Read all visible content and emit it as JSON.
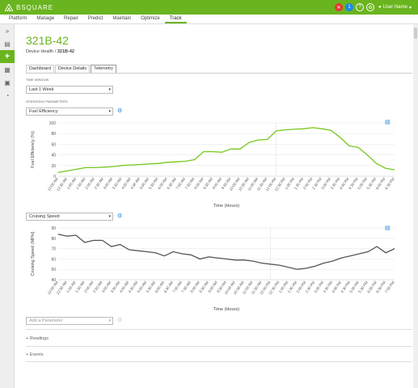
{
  "app": {
    "brand": "BSQUARE",
    "user": "User Name",
    "alert_count": "1"
  },
  "nav": [
    {
      "label": "Platform"
    },
    {
      "label": "Manage"
    },
    {
      "label": "Repair"
    },
    {
      "label": "Predict"
    },
    {
      "label": "Maintain"
    },
    {
      "label": "Optimize"
    },
    {
      "label": "Track",
      "active": true
    }
  ],
  "device": {
    "id": "321B-42",
    "crumb_parent": "Device Health",
    "crumb_sep": "/",
    "crumb_current": "321B-42"
  },
  "tabs": [
    {
      "label": "Dashboard"
    },
    {
      "label": "Device Details"
    },
    {
      "label": "Telemetry",
      "active": true
    }
  ],
  "filters": {
    "time_window_label": "TIME WINDOW",
    "time_window_value": "Last 1 Week",
    "operating_label": "OPERATING PARAMETERS",
    "param1_value": "Fuel Efficiency",
    "param2_value": "Cruising Speed",
    "add_param_placeholder": "Add a Parameter"
  },
  "sections": {
    "readings": "Readings",
    "events": "Events",
    "expand_glyph": "+"
  },
  "chart_data": [
    {
      "type": "line",
      "title": "",
      "xlabel": "Time (Hours)",
      "ylabel": "Fuel Efficiency (%)",
      "ylim": [
        0,
        100
      ],
      "yticks": [
        0,
        20,
        40,
        60,
        80,
        100
      ],
      "color": "#76c81f",
      "x": [
        "12:00 AM",
        "12:30 AM",
        "1:00 AM",
        "1:30 AM",
        "2:00 AM",
        "2:30 AM",
        "3:00 AM",
        "3:30 AM",
        "4:00 AM",
        "4:30 AM",
        "5:00 AM",
        "5:30 AM",
        "6:00 AM",
        "6:30 AM",
        "7:00 AM",
        "7:30 AM",
        "8:00 AM",
        "8:30 AM",
        "9:00 AM",
        "9:30 AM",
        "10:00 AM",
        "10:30 AM",
        "11:00 AM",
        "11:30 AM",
        "12:00 PM",
        "12:30 PM",
        "1:00 PM",
        "1:30 PM",
        "2:00 PM",
        "2:30 PM",
        "3:00 PM",
        "3:30 PM",
        "4:00 PM",
        "4:30 PM",
        "5:00 PM",
        "5:30 PM",
        "6:00 PM",
        "6:30 PM"
      ],
      "values": [
        7,
        10,
        13,
        16,
        16,
        17,
        18,
        20,
        21,
        22,
        23,
        24,
        26,
        27,
        28,
        31,
        46,
        46,
        45,
        51,
        51,
        63,
        68,
        69,
        85,
        87,
        88,
        89,
        91,
        89,
        86,
        73,
        57,
        54,
        40,
        24,
        15,
        12
      ]
    },
    {
      "type": "line",
      "title": "",
      "xlabel": "Time (Hours)",
      "ylabel": "Cruising Speed (MPH)",
      "ylim": [
        40,
        90
      ],
      "yticks": [
        40,
        50,
        60,
        70,
        80,
        90
      ],
      "color": "#555555",
      "x": [
        "12:00 AM",
        "12:30 AM",
        "1:00 AM",
        "1:30 AM",
        "2:00 AM",
        "2:30 AM",
        "3:00 AM",
        "3:30 AM",
        "4:00 AM",
        "4:30 AM",
        "5:00 AM",
        "5:30 AM",
        "6:00 AM",
        "6:30 AM",
        "7:00 AM",
        "7:30 AM",
        "8:00 AM",
        "8:30 AM",
        "9:00 AM",
        "9:30 AM",
        "10:00 AM",
        "10:30 AM",
        "11:00 AM",
        "11:30 AM",
        "12:00 PM",
        "12:30 PM",
        "1:00 PM",
        "1:30 PM",
        "2:00 PM",
        "2:30 PM",
        "3:00 PM",
        "3:30 PM",
        "4:00 PM",
        "4:30 PM",
        "5:00 PM",
        "5:30 PM",
        "6:00 PM",
        "6:30 PM",
        "7:00 PM"
      ],
      "values": [
        84,
        82,
        83,
        76,
        78,
        78,
        72,
        74,
        69,
        68,
        67,
        66,
        63,
        67,
        65,
        64,
        60,
        62,
        61,
        60,
        59,
        59,
        58,
        56,
        55,
        54,
        52,
        50,
        51,
        53,
        56,
        58,
        61,
        63,
        65,
        67,
        72,
        66,
        70
      ]
    }
  ]
}
